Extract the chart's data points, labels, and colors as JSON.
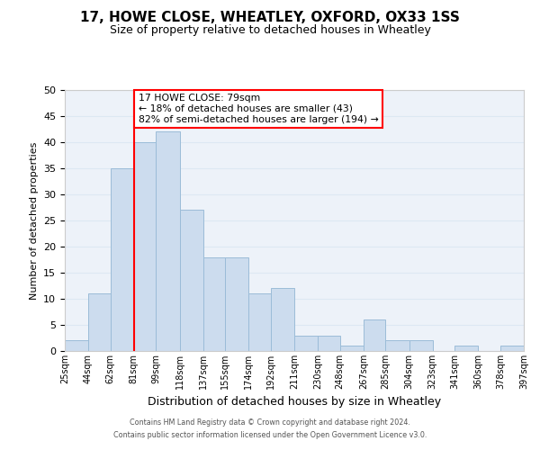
{
  "title": "17, HOWE CLOSE, WHEATLEY, OXFORD, OX33 1SS",
  "subtitle": "Size of property relative to detached houses in Wheatley",
  "xlabel": "Distribution of detached houses by size in Wheatley",
  "ylabel": "Number of detached properties",
  "bar_edges": [
    25,
    44,
    62,
    81,
    99,
    118,
    137,
    155,
    174,
    192,
    211,
    230,
    248,
    267,
    285,
    304,
    323,
    341,
    360,
    378,
    397
  ],
  "bar_heights": [
    2,
    11,
    35,
    40,
    42,
    27,
    18,
    18,
    11,
    12,
    3,
    3,
    1,
    6,
    2,
    2,
    0,
    1,
    0,
    1
  ],
  "tick_labels": [
    "25sqm",
    "44sqm",
    "62sqm",
    "81sqm",
    "99sqm",
    "118sqm",
    "137sqm",
    "155sqm",
    "174sqm",
    "192sqm",
    "211sqm",
    "230sqm",
    "248sqm",
    "267sqm",
    "285sqm",
    "304sqm",
    "323sqm",
    "341sqm",
    "360sqm",
    "378sqm",
    "397sqm"
  ],
  "bar_color": "#ccdcee",
  "bar_edge_color": "#9bbcd8",
  "property_line_x": 81,
  "ylim": [
    0,
    50
  ],
  "yticks": [
    0,
    5,
    10,
    15,
    20,
    25,
    30,
    35,
    40,
    45,
    50
  ],
  "annotation_title": "17 HOWE CLOSE: 79sqm",
  "annotation_line1": "← 18% of detached houses are smaller (43)",
  "annotation_line2": "82% of semi-detached houses are larger (194) →",
  "footer1": "Contains HM Land Registry data © Crown copyright and database right 2024.",
  "footer2": "Contains public sector information licensed under the Open Government Licence v3.0.",
  "grid_color": "#dde8f3",
  "background_color": "#edf2f9"
}
